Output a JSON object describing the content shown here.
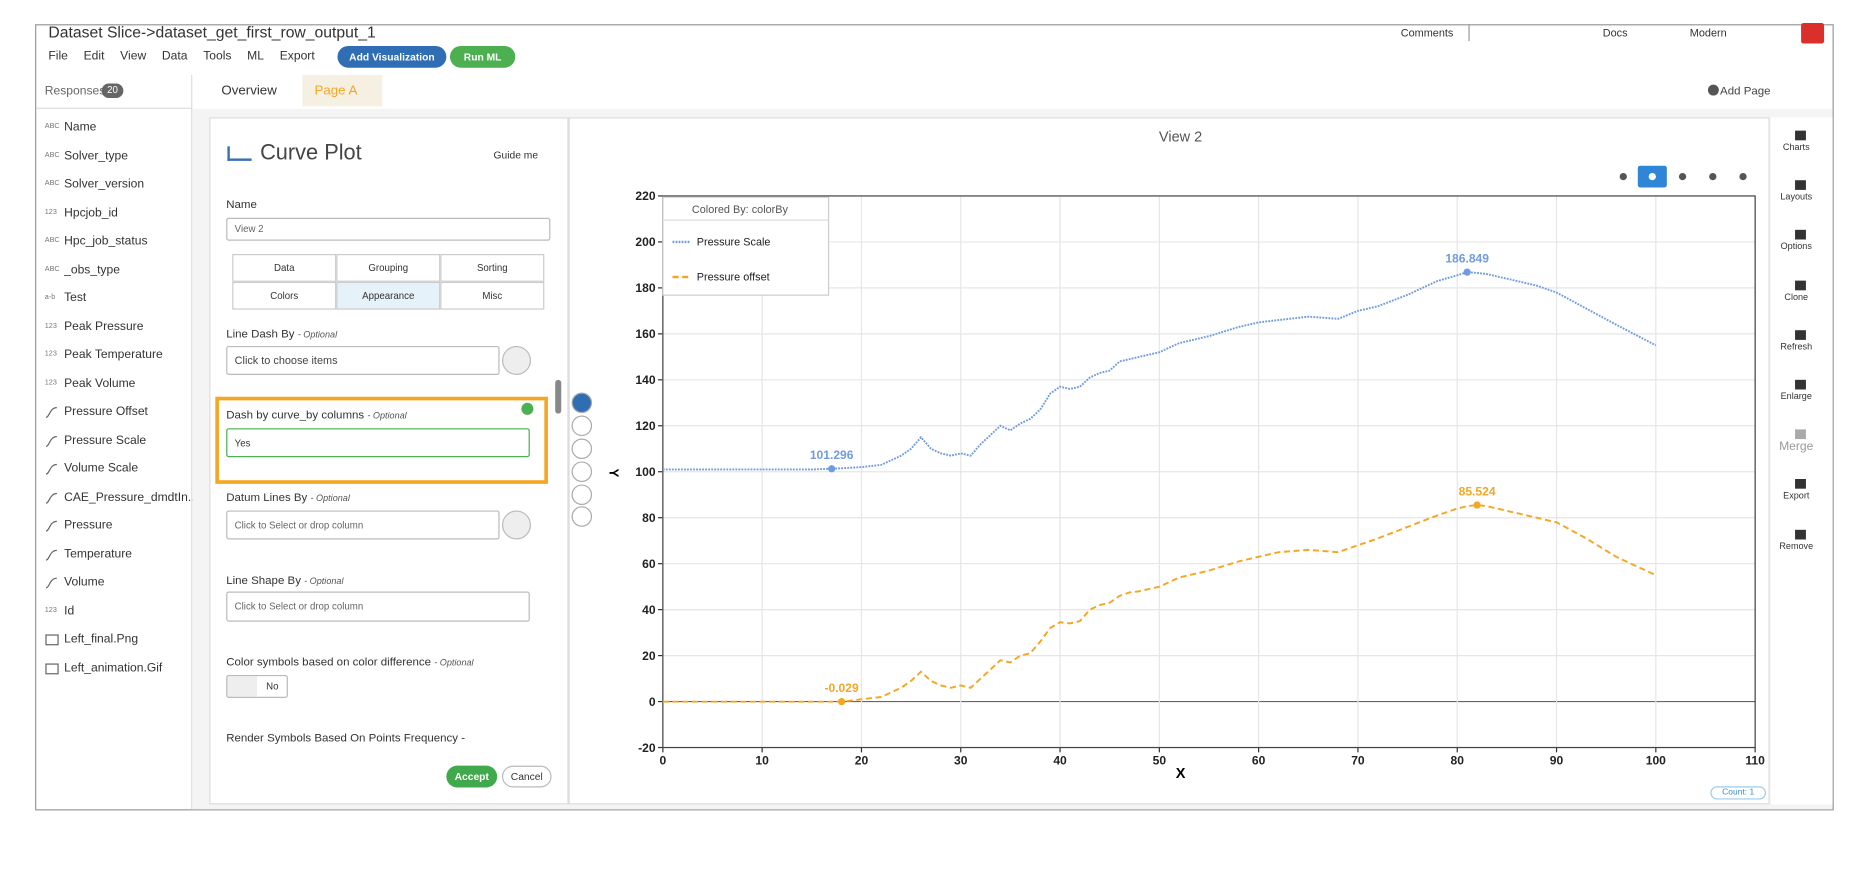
{
  "header": {
    "title": "Dataset Slice->dataset_get_first_row_output_1",
    "menu": [
      "File",
      "Edit",
      "View",
      "Data",
      "Tools",
      "ML",
      "Export"
    ],
    "add_visualization": "Add Visualization",
    "run_ml": "Run ML",
    "comments": "Comments",
    "docs": "Docs",
    "theme": "Modern"
  },
  "sidebar": {
    "responses": "Responses:",
    "count": 20,
    "fields": [
      {
        "tag": "ABC",
        "name": "Name"
      },
      {
        "tag": "ABC",
        "name": "Solver_type"
      },
      {
        "tag": "ABC",
        "name": "Solver_version"
      },
      {
        "tag": "123",
        "name": "Hpcjob_id"
      },
      {
        "tag": "ABC",
        "name": "Hpc_job_status"
      },
      {
        "tag": "ABC",
        "name": "_obs_type"
      },
      {
        "tag": "a-b",
        "name": "Test"
      },
      {
        "tag": "123",
        "name": "Peak Pressure"
      },
      {
        "tag": "123",
        "name": "Peak Temperature"
      },
      {
        "tag": "123",
        "name": "Peak Volume"
      },
      {
        "icon": "curve",
        "name": "Pressure Offset"
      },
      {
        "icon": "curve",
        "name": "Pressure Scale"
      },
      {
        "icon": "curve",
        "name": "Volume Scale"
      },
      {
        "icon": "curve",
        "name": "CAE_Pressure_dmdtIn..."
      },
      {
        "icon": "curve",
        "name": "Pressure"
      },
      {
        "icon": "curve",
        "name": "Temperature"
      },
      {
        "icon": "curve",
        "name": "Volume"
      },
      {
        "tag": "123",
        "name": "Id"
      },
      {
        "icon": "image",
        "name": "Left_final.Png"
      },
      {
        "icon": "image",
        "name": "Left_animation.Gif"
      }
    ]
  },
  "pages": {
    "tabs": [
      "Overview",
      "Page A"
    ],
    "add_page": "Add Page"
  },
  "panel": {
    "title": "Curve Plot",
    "guide": "Guide me",
    "name_label": "Name",
    "name_value": "View 2",
    "tabs": [
      "Data",
      "Grouping",
      "Sorting",
      "Colors",
      "Appearance",
      "Misc"
    ],
    "line_dash": {
      "label": "Line Dash By",
      "optional": "- Optional",
      "placeholder": "Click to choose items"
    },
    "dash_curve": {
      "label": "Dash by curve_by columns",
      "optional": "- Optional",
      "value": "Yes"
    },
    "datum": {
      "label": "Datum Lines By",
      "optional": "- Optional",
      "placeholder": "Click to Select or drop column"
    },
    "shape": {
      "label": "Line Shape By",
      "optional": "- Optional",
      "placeholder": "Click to Select or drop column"
    },
    "color_symbols": {
      "label": "Color symbols based on color difference",
      "optional": "- Optional",
      "value": "No"
    },
    "render": {
      "label": "Render Symbols Based On Points Frequency -"
    },
    "accept": "Accept",
    "cancel": "Cancel"
  },
  "chart_data": {
    "type": "line",
    "title": "View 2",
    "legend_title": "Colored By: colorBy",
    "xlabel": "X",
    "ylabel": "Y",
    "xlim": [
      0,
      110
    ],
    "xticks": [
      0,
      10,
      20,
      30,
      40,
      50,
      60,
      70,
      80,
      90,
      100,
      110
    ],
    "ylim": [
      -20,
      220
    ],
    "yticks": [
      -20,
      0,
      20,
      40,
      60,
      80,
      100,
      120,
      140,
      160,
      180,
      200,
      220
    ],
    "grid": true,
    "x": [
      0,
      5,
      10,
      15,
      17,
      18,
      20,
      22,
      24,
      25,
      26,
      27,
      28,
      29,
      30,
      31,
      32,
      33,
      34,
      35,
      36,
      37,
      38,
      39,
      40,
      41,
      42,
      43,
      44,
      45,
      46,
      47,
      48,
      50,
      52,
      55,
      58,
      60,
      62,
      65,
      68,
      70,
      72,
      75,
      78,
      80,
      81,
      82,
      83,
      85,
      88,
      90,
      93,
      96,
      100
    ],
    "series": [
      {
        "name": "Pressure Scale",
        "color": "#6f9be0",
        "dash": "dotted",
        "values": [
          101,
          101,
          101,
          101,
          101.296,
          101.5,
          102,
          103,
          107,
          110,
          115,
          110,
          108,
          107,
          108,
          107,
          112,
          116,
          120,
          118,
          121,
          123,
          127,
          134,
          137,
          136,
          137,
          141,
          143,
          144,
          148,
          149,
          150,
          152,
          156,
          159,
          163,
          165,
          166,
          167.5,
          166.5,
          170,
          172,
          177,
          183,
          185.5,
          186.849,
          186.5,
          186,
          184,
          181,
          178,
          171,
          164,
          155
        ],
        "points": [
          {
            "x": 17,
            "y": 101.296
          },
          {
            "x": 81,
            "y": 186.849
          }
        ]
      },
      {
        "name": "Pressure offset",
        "color": "#f5a623",
        "dash": "dashed",
        "values": [
          -0.03,
          -0.03,
          -0.03,
          -0.03,
          -0.03,
          -0.029,
          1,
          2,
          6,
          9,
          13,
          9,
          7,
          6,
          7,
          6,
          10,
          14,
          18,
          17,
          20,
          21,
          26,
          32,
          34.5,
          34,
          35,
          40,
          42,
          43,
          46,
          47.5,
          48,
          50,
          54,
          57,
          61,
          63,
          65,
          66,
          65,
          68,
          71,
          76,
          81,
          84,
          85,
          85.524,
          85,
          83,
          80,
          78,
          71,
          63,
          55
        ],
        "points": [
          {
            "x": 18,
            "y": -0.029
          },
          {
            "x": 82,
            "y": 85.524
          }
        ]
      }
    ]
  },
  "rail": [
    "Charts",
    "Layouts",
    "Options",
    "Clone",
    "Refresh",
    "Enlarge",
    "Merge",
    "Export",
    "Remove"
  ],
  "count": {
    "label": "Count:",
    "value": 1
  }
}
